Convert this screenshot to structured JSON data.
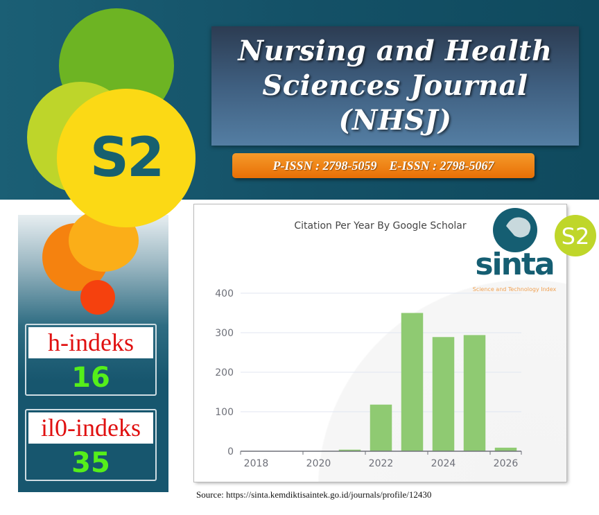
{
  "header": {
    "title_lines": [
      "Nursing and Health",
      "Sciences Journal",
      "(NHSJ)"
    ],
    "p_issn": "P-ISSN : 2798-5059",
    "e_issn": "E-ISSN : 2798-5067",
    "accreditation_badge": "S2"
  },
  "metrics": {
    "h_index": {
      "label": "h-indeks",
      "value": "16"
    },
    "i10_index": {
      "label": "il0-indeks",
      "value": "35"
    }
  },
  "sinta_logo": {
    "text": "sinta",
    "tagline": "Science and Technology Index",
    "badge": "S2"
  },
  "source": "Source: https://sinta.kemdiktisaintek.go.id/journals/profile/12430",
  "colors": {
    "bar": "#8fca72",
    "header_bg": "#145167",
    "issn_bar": "#ee7d10",
    "index_value": "#55ef1a",
    "index_label": "#e01010"
  },
  "chart_data": {
    "type": "bar",
    "title": "Citation Per Year By Google Scholar",
    "categories": [
      "2018",
      "2019",
      "2020",
      "2021",
      "2022",
      "2023",
      "2024",
      "2025",
      "2026"
    ],
    "values": [
      0,
      0,
      0,
      4,
      118,
      350,
      289,
      294,
      9
    ],
    "x_tick_labels": [
      "2018",
      "2020",
      "2022",
      "2024",
      "2026"
    ],
    "y_ticks": [
      "0",
      "100",
      "200",
      "300",
      "400"
    ],
    "ylim": [
      0,
      400
    ],
    "grid": true,
    "xlabel": "",
    "ylabel": ""
  }
}
